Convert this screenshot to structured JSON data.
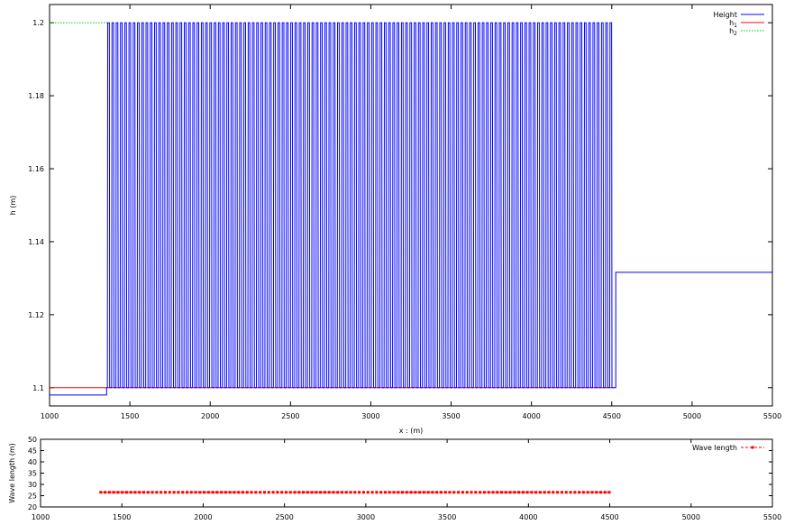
{
  "chart_data": [
    {
      "type": "line",
      "title": "",
      "xlabel": "x : (m)",
      "ylabel": "h (m)",
      "xlim": [
        1000,
        5500
      ],
      "ylim": [
        1.095,
        1.205
      ],
      "grid": false,
      "legend_position": "top-right",
      "x_ticks": [
        "1000",
        "1500",
        "2000",
        "2500",
        "3000",
        "3500",
        "4000",
        "4500",
        "5000",
        "5500"
      ],
      "y_ticks": [
        "1.1",
        "1.12",
        "1.14",
        "1.16",
        "1.18",
        "1.2"
      ],
      "x_tick_values": [
        1000,
        1500,
        2000,
        2500,
        3000,
        3500,
        4000,
        4500,
        5000,
        5500
      ],
      "y_tick_values": [
        1.1,
        1.12,
        1.14,
        1.16,
        1.18,
        1.2
      ],
      "series": [
        {
          "name": "Height",
          "color": "#0000ff",
          "description": "square-like oscillation between 1.1 and 1.2 from x≈1360 to x≈4510, flat elsewhere",
          "base_left": 1.098,
          "step_x_start": 1355,
          "osc_start": 1360,
          "osc_end": 4510,
          "osc_low": 1.1,
          "osc_high": 1.2,
          "osc_period": 26.5,
          "step_x_end": 4525,
          "base_right": 1.1316
        },
        {
          "name": "h1",
          "name_main": "h",
          "name_sub": "1",
          "color": "#ff0000",
          "x": [
            1000,
            4510
          ],
          "y": [
            1.1,
            1.1
          ]
        },
        {
          "name": "h2",
          "name_main": "h",
          "name_sub": "2",
          "color": "#00cc00",
          "dashed": true,
          "x": [
            1000,
            1360
          ],
          "y": [
            1.2,
            1.2
          ]
        }
      ]
    },
    {
      "type": "line",
      "title": "",
      "xlabel": "",
      "ylabel": "Wave length (m)",
      "xlim": [
        1000,
        5500
      ],
      "ylim": [
        20,
        50
      ],
      "grid": false,
      "legend_position": "top-right",
      "x_ticks": [
        "1000",
        "1500",
        "2000",
        "2500",
        "3000",
        "3500",
        "4000",
        "4500",
        "5000",
        "5500"
      ],
      "y_ticks": [
        "20",
        "25",
        "30",
        "35",
        "40",
        "45",
        "50"
      ],
      "x_tick_values": [
        1000,
        1500,
        2000,
        2500,
        3000,
        3500,
        4000,
        4500,
        5000,
        5500
      ],
      "y_tick_values": [
        20,
        25,
        30,
        35,
        40,
        45,
        50
      ],
      "series": [
        {
          "name": "Wave length",
          "color": "#ff0000",
          "dashed": true,
          "marker": "square",
          "x_start": 1370,
          "x_end": 4500,
          "x_step": 26.5,
          "y_const": 26.5
        }
      ]
    }
  ]
}
